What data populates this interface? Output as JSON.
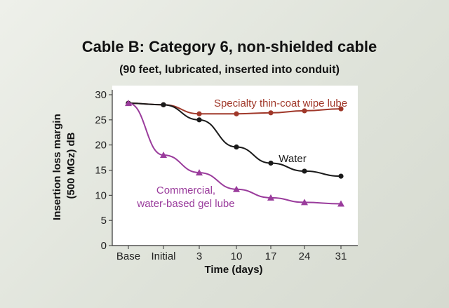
{
  "chart_data": {
    "type": "line",
    "title": "Cable B: Category 6, non-shielded cable",
    "subtitle": "(90 feet, lubricated, inserted into conduit)",
    "xlabel": "Time (days)",
    "ylabel_lines": [
      "Insertion loss margin",
      "(500 MGz) dB"
    ],
    "categories": [
      "Base",
      "Initial",
      "3",
      "10",
      "17",
      "24",
      "31"
    ],
    "ylim": [
      0,
      30
    ],
    "yticks": [
      0,
      5,
      10,
      15,
      20,
      25,
      30
    ],
    "grid": false,
    "series": [
      {
        "name": "Specialty thin-coat wipe lube",
        "label_lines": [
          "Specialty thin-coat wipe lube"
        ],
        "color": "#a0382a",
        "marker": "circle",
        "values": [
          28.3,
          28.0,
          26.2,
          26.2,
          26.4,
          26.8,
          27.2
        ]
      },
      {
        "name": "Water",
        "label_lines": [
          "Water"
        ],
        "color": "#1a1a1a",
        "marker": "circle",
        "values": [
          28.3,
          28.0,
          25.0,
          19.6,
          16.4,
          14.8,
          13.8
        ]
      },
      {
        "name": "Commercial, water-based gel lube",
        "label_lines": [
          "Commercial,",
          "water-based gel lube"
        ],
        "color": "#9a3c9c",
        "marker": "triangle",
        "values": [
          28.3,
          18.0,
          14.5,
          11.2,
          9.5,
          8.6,
          8.3
        ]
      }
    ]
  }
}
